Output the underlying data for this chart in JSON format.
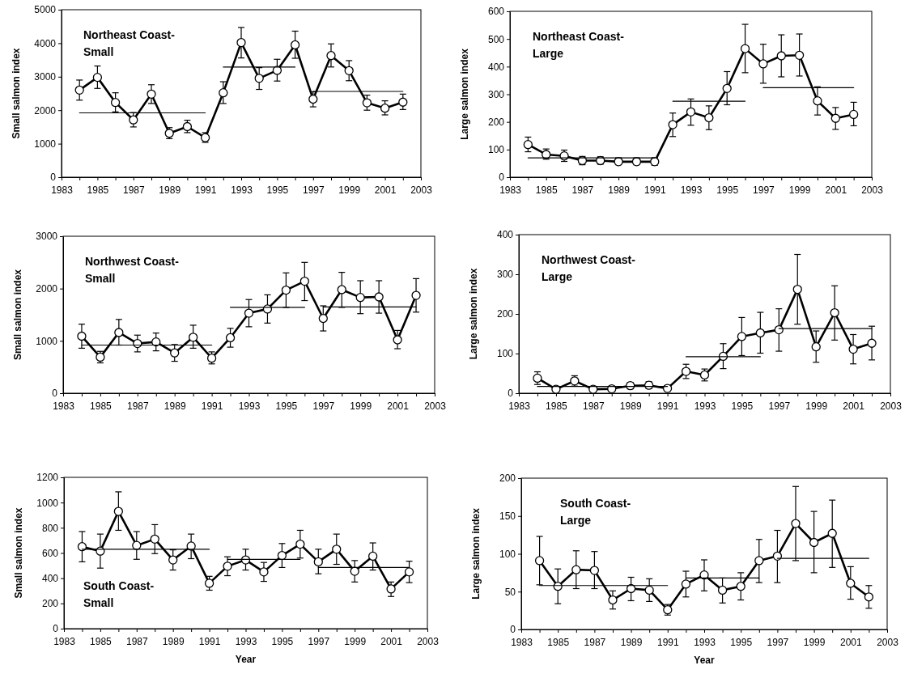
{
  "chart_data": [
    {
      "type": "line",
      "title": "Northeast Coast-Small",
      "ylabel": "Small salmon index",
      "x": [
        1984,
        1985,
        1986,
        1987,
        1988,
        1989,
        1990,
        1991,
        1992,
        1993,
        1994,
        1995,
        1996,
        1997,
        1998,
        1999,
        2000,
        2001,
        2002
      ],
      "xlim": [
        1983,
        2003
      ],
      "xticks": [
        1983,
        {
          "value": 1984,
          "label": null
        },
        1985,
        {
          "value": 1986,
          "label": null
        },
        1987,
        {
          "value": 1988,
          "label": null
        },
        1989,
        {
          "value": 1990,
          "label": null
        },
        1991,
        {
          "value": 1992,
          "label": null
        },
        1993,
        {
          "value": 1994,
          "label": null
        },
        1995,
        {
          "value": 1996,
          "label": null
        },
        1997,
        {
          "value": 1998,
          "label": null
        },
        1999,
        {
          "value": 2000,
          "label": null
        },
        2001,
        {
          "value": 2002,
          "label": null
        },
        2003
      ],
      "ylim": [
        0,
        5000
      ],
      "yticks": [
        0,
        1000,
        2000,
        3000,
        4000,
        5000
      ],
      "series": [
        {
          "color": "#000000",
          "marker": "circle",
          "values": [
            2600,
            2980,
            2230,
            1710,
            2480,
            1310,
            1510,
            1180,
            2520,
            4020,
            2950,
            3190,
            3950,
            2330,
            3630,
            3180,
            2220,
            2060,
            2240
          ],
          "errors": [
            [
              2300,
              2900
            ],
            [
              2650,
              3320
            ],
            [
              1950,
              2520
            ],
            [
              1500,
              1930
            ],
            [
              2200,
              2760
            ],
            [
              1150,
              1480
            ],
            [
              1330,
              1700
            ],
            [
              1040,
              1330
            ],
            [
              2200,
              2850
            ],
            [
              3560,
              4470
            ],
            [
              2620,
              3270
            ],
            [
              2870,
              3520
            ],
            [
              3550,
              4360
            ],
            [
              2100,
              2550
            ],
            [
              3290,
              3980
            ],
            [
              2880,
              3480
            ],
            [
              2000,
              2450
            ],
            [
              1860,
              2280
            ],
            [
              2020,
              2480
            ]
          ]
        },
        {
          "color": "#000000",
          "marker": "none",
          "x": [
            1984,
            1991
          ],
          "values": [
            1920,
            1920
          ]
        },
        {
          "color": "#000000",
          "marker": "none",
          "x": [
            1992,
            1996
          ],
          "values": [
            3290,
            3290
          ]
        },
        {
          "color": "#000000",
          "marker": "none",
          "x": [
            1997,
            2002
          ],
          "values": [
            2560,
            2560
          ]
        }
      ]
    },
    {
      "type": "line",
      "title": "Northeast Coast-Large",
      "ylabel": "Large salmon index",
      "x": [
        1984,
        1985,
        1986,
        1987,
        1988,
        1989,
        1990,
        1991,
        1992,
        1993,
        1994,
        1995,
        1996,
        1997,
        1998,
        1999,
        2000,
        2001,
        2002
      ],
      "xlim": [
        1983,
        2003
      ],
      "xticks": [
        1983,
        {
          "value": 1984,
          "label": null
        },
        1985,
        {
          "value": 1986,
          "label": null
        },
        1987,
        {
          "value": 1988,
          "label": null
        },
        1989,
        {
          "value": 1990,
          "label": null
        },
        1991,
        {
          "value": 1992,
          "label": null
        },
        1993,
        {
          "value": 1994,
          "label": null
        },
        1995,
        {
          "value": 1996,
          "label": null
        },
        1997,
        {
          "value": 1998,
          "label": null
        },
        1999,
        {
          "value": 2000,
          "label": null
        },
        2001,
        {
          "value": 2002,
          "label": null
        },
        2003
      ],
      "ylim": [
        0,
        600
      ],
      "yticks": [
        0,
        100,
        200,
        300,
        400,
        500,
        600
      ],
      "series": [
        {
          "color": "#000000",
          "marker": "circle",
          "values": [
            118,
            82,
            77,
            60,
            60,
            56,
            56,
            56,
            190,
            236,
            215,
            321,
            465,
            410,
            439,
            441,
            276,
            213,
            227
          ],
          "errors": [
            [
              92,
              145
            ],
            [
              65,
              102
            ],
            [
              57,
              98
            ],
            [
              45,
              75
            ],
            [
              47,
              74
            ],
            [
              45,
              70
            ],
            [
              45,
              70
            ],
            [
              43,
              70
            ],
            [
              147,
              232
            ],
            [
              188,
              283
            ],
            [
              172,
              258
            ],
            [
              262,
              382
            ],
            [
              378,
              553
            ],
            [
              340,
              481
            ],
            [
              363,
              515
            ],
            [
              366,
              518
            ],
            [
              225,
              327
            ],
            [
              173,
              252
            ],
            [
              186,
              271
            ]
          ]
        },
        {
          "color": "#000000",
          "marker": "none",
          "x": [
            1984,
            1991
          ],
          "values": [
            70,
            70
          ]
        },
        {
          "color": "#000000",
          "marker": "none",
          "x": [
            1992,
            1996
          ],
          "values": [
            275,
            275
          ]
        },
        {
          "color": "#000000",
          "marker": "none",
          "x": [
            1997,
            2002
          ],
          "values": [
            324,
            324
          ]
        }
      ]
    },
    {
      "type": "line",
      "title": "Northwest Coast-Small",
      "ylabel": "Small salmon index",
      "x": [
        1984,
        1985,
        1986,
        1987,
        1988,
        1989,
        1990,
        1991,
        1992,
        1993,
        1994,
        1995,
        1996,
        1997,
        1998,
        1999,
        2000,
        2001,
        2002
      ],
      "xlim": [
        1983,
        2003
      ],
      "xticks": [
        1983,
        {
          "value": 1984,
          "label": null
        },
        1985,
        {
          "value": 1986,
          "label": null
        },
        1987,
        {
          "value": 1988,
          "label": null
        },
        1989,
        {
          "value": 1990,
          "label": null
        },
        1991,
        {
          "value": 1992,
          "label": null
        },
        1993,
        {
          "value": 1994,
          "label": null
        },
        1995,
        {
          "value": 1996,
          "label": null
        },
        1997,
        {
          "value": 1998,
          "label": null
        },
        1999,
        {
          "value": 2000,
          "label": null
        },
        2001,
        {
          "value": 2002,
          "label": null
        },
        2003
      ],
      "ylim": [
        0,
        3000
      ],
      "yticks": [
        0,
        1000,
        2000,
        3000
      ],
      "series": [
        {
          "color": "#000000",
          "marker": "circle",
          "values": [
            1090,
            690,
            1160,
            950,
            980,
            770,
            1070,
            670,
            1060,
            1530,
            1610,
            1970,
            2140,
            1430,
            1980,
            1830,
            1840,
            1020,
            1870
          ],
          "errors": [
            [
              860,
              1320
            ],
            [
              580,
              800
            ],
            [
              920,
              1410
            ],
            [
              790,
              1110
            ],
            [
              810,
              1150
            ],
            [
              610,
              930
            ],
            [
              860,
              1300
            ],
            [
              560,
              790
            ],
            [
              880,
              1240
            ],
            [
              1270,
              1790
            ],
            [
              1340,
              1880
            ],
            [
              1640,
              2300
            ],
            [
              1770,
              2500
            ],
            [
              1190,
              1670
            ],
            [
              1640,
              2310
            ],
            [
              1520,
              2150
            ],
            [
              1530,
              2150
            ],
            [
              850,
              1200
            ],
            [
              1550,
              2190
            ]
          ]
        },
        {
          "color": "#000000",
          "marker": "none",
          "x": [
            1984,
            1991
          ],
          "values": [
            920,
            920
          ]
        },
        {
          "color": "#000000",
          "marker": "none",
          "x": [
            1992,
            1996
          ],
          "values": [
            1640,
            1640
          ]
        },
        {
          "color": "#000000",
          "marker": "none",
          "x": [
            1997,
            2002
          ],
          "values": [
            1650,
            1650
          ]
        }
      ]
    },
    {
      "type": "line",
      "title": "Northwest Coast-Large",
      "ylabel": "Large salmon index",
      "x": [
        1984,
        1985,
        1986,
        1987,
        1988,
        1989,
        1990,
        1991,
        1992,
        1993,
        1994,
        1995,
        1996,
        1997,
        1998,
        1999,
        2000,
        2001,
        2002
      ],
      "xlim": [
        1983,
        2003
      ],
      "xticks": [
        1983,
        {
          "value": 1984,
          "label": null
        },
        1985,
        {
          "value": 1986,
          "label": null
        },
        1987,
        {
          "value": 1988,
          "label": null
        },
        1989,
        {
          "value": 1990,
          "label": null
        },
        1991,
        {
          "value": 1992,
          "label": null
        },
        1993,
        {
          "value": 1994,
          "label": null
        },
        1995,
        {
          "value": 1996,
          "label": null
        },
        1997,
        {
          "value": 1998,
          "label": null
        },
        1999,
        {
          "value": 2000,
          "label": null
        },
        2001,
        {
          "value": 2002,
          "label": null
        },
        2003
      ],
      "ylim": [
        0,
        400
      ],
      "yticks": [
        0,
        100,
        200,
        300,
        400
      ],
      "series": [
        {
          "color": "#000000",
          "marker": "circle",
          "values": [
            38,
            10,
            31,
            10,
            11,
            19,
            20,
            12,
            55,
            46,
            93,
            143,
            152,
            160,
            262,
            117,
            203,
            111,
            126
          ],
          "errors": [
            [
              22,
              54
            ],
            [
              5,
              15
            ],
            [
              18,
              44
            ],
            [
              5,
              15
            ],
            [
              6,
              15
            ],
            [
              11,
              27
            ],
            [
              12,
              29
            ],
            [
              6,
              18
            ],
            [
              37,
              73
            ],
            [
              31,
              61
            ],
            [
              62,
              125
            ],
            [
              95,
              191
            ],
            [
              101,
              204
            ],
            [
              106,
              213
            ],
            [
              174,
              350
            ],
            [
              78,
              157
            ],
            [
              134,
              271
            ],
            [
              74,
              148
            ],
            [
              84,
              169
            ]
          ]
        },
        {
          "color": "#000000",
          "marker": "none",
          "x": [
            1984,
            1991
          ],
          "values": [
            17,
            17
          ]
        },
        {
          "color": "#000000",
          "marker": "none",
          "x": [
            1992,
            1996
          ],
          "values": [
            92,
            92
          ]
        },
        {
          "color": "#000000",
          "marker": "none",
          "x": [
            1997,
            2002
          ],
          "values": [
            163,
            163
          ]
        }
      ]
    },
    {
      "type": "line",
      "title": "South Coast-Small",
      "xlabel": "Year",
      "ylabel": "Small salmon index",
      "x": [
        1984,
        1985,
        1986,
        1987,
        1988,
        1989,
        1990,
        1991,
        1992,
        1993,
        1994,
        1995,
        1996,
        1997,
        1998,
        1999,
        2000,
        2001,
        2002
      ],
      "xlim": [
        1983,
        2003
      ],
      "xticks": [
        1983,
        {
          "value": 1984,
          "label": null
        },
        1985,
        {
          "value": 1986,
          "label": null
        },
        1987,
        {
          "value": 1988,
          "label": null
        },
        1989,
        {
          "value": 1990,
          "label": null
        },
        1991,
        {
          "value": 1992,
          "label": null
        },
        1993,
        {
          "value": 1994,
          "label": null
        },
        1995,
        {
          "value": 1996,
          "label": null
        },
        1997,
        {
          "value": 1998,
          "label": null
        },
        1999,
        {
          "value": 2000,
          "label": null
        },
        2001,
        {
          "value": 2002,
          "label": null
        },
        2003
      ],
      "ylim": [
        0,
        1200
      ],
      "yticks": [
        0,
        200,
        400,
        600,
        800,
        1000,
        1200
      ],
      "series": [
        {
          "color": "#000000",
          "marker": "circle",
          "values": [
            650,
            615,
            930,
            660,
            710,
            545,
            655,
            360,
            495,
            545,
            450,
            580,
            670,
            530,
            630,
            455,
            575,
            315,
            450
          ],
          "errors": [
            [
              530,
              770
            ],
            [
              480,
              750
            ],
            [
              780,
              1085
            ],
            [
              550,
              770
            ],
            [
              595,
              825
            ],
            [
              465,
              625
            ],
            [
              555,
              750
            ],
            [
              305,
              415
            ],
            [
              420,
              570
            ],
            [
              465,
              630
            ],
            [
              375,
              525
            ],
            [
              485,
              675
            ],
            [
              560,
              780
            ],
            [
              435,
              630
            ],
            [
              510,
              750
            ],
            [
              370,
              540
            ],
            [
              465,
              680
            ],
            [
              255,
              370
            ],
            [
              365,
              535
            ]
          ]
        },
        {
          "color": "#000000",
          "marker": "none",
          "x": [
            1984,
            1991
          ],
          "values": [
            630,
            630
          ]
        },
        {
          "color": "#000000",
          "marker": "none",
          "x": [
            1992,
            1996
          ],
          "values": [
            550,
            550
          ]
        },
        {
          "color": "#000000",
          "marker": "none",
          "x": [
            1997,
            2002
          ],
          "values": [
            485,
            485
          ]
        }
      ]
    },
    {
      "type": "line",
      "title": "South Coast-Large",
      "xlabel": "Year",
      "ylabel": "Large salmon index",
      "x": [
        1984,
        1985,
        1986,
        1987,
        1988,
        1989,
        1990,
        1991,
        1992,
        1993,
        1994,
        1995,
        1996,
        1997,
        1998,
        1999,
        2000,
        2001,
        2002
      ],
      "xlim": [
        1983,
        2003
      ],
      "xticks": [
        1983,
        {
          "value": 1984,
          "label": null
        },
        1985,
        {
          "value": 1986,
          "label": null
        },
        1987,
        {
          "value": 1988,
          "label": null
        },
        1989,
        {
          "value": 1990,
          "label": null
        },
        1991,
        {
          "value": 1992,
          "label": null
        },
        1993,
        {
          "value": 1994,
          "label": null
        },
        1995,
        {
          "value": 1996,
          "label": null
        },
        1997,
        {
          "value": 1998,
          "label": null
        },
        1999,
        {
          "value": 2000,
          "label": null
        },
        2001,
        {
          "value": 2002,
          "label": null
        },
        2003
      ],
      "ylim": [
        0,
        200
      ],
      "yticks": [
        0,
        50,
        100,
        150,
        200
      ],
      "series": [
        {
          "color": "#000000",
          "marker": "circle",
          "values": [
            91,
            57,
            79,
            78,
            39,
            54,
            52,
            26,
            60,
            72,
            52,
            57,
            91,
            97,
            140,
            115,
            127,
            61,
            43
          ],
          "errors": [
            [
              59,
              123
            ],
            [
              34,
              80
            ],
            [
              54,
              104
            ],
            [
              54,
              103
            ],
            [
              27,
              51
            ],
            [
              38,
              69
            ],
            [
              37,
              67
            ],
            [
              19,
              33
            ],
            [
              43,
              77
            ],
            [
              51,
              92
            ],
            [
              35,
              68
            ],
            [
              39,
              75
            ],
            [
              62,
              119
            ],
            [
              62,
              131
            ],
            [
              91,
              189
            ],
            [
              75,
              156
            ],
            [
              82,
              171
            ],
            [
              40,
              83
            ],
            [
              28,
              58
            ]
          ]
        },
        {
          "color": "#000000",
          "marker": "none",
          "x": [
            1984,
            1991
          ],
          "values": [
            58,
            58
          ]
        },
        {
          "color": "#000000",
          "marker": "none",
          "x": [
            1992,
            1996
          ],
          "values": [
            68,
            68
          ]
        },
        {
          "color": "#000000",
          "marker": "none",
          "x": [
            1997,
            2002
          ],
          "values": [
            94,
            94
          ]
        }
      ]
    }
  ]
}
